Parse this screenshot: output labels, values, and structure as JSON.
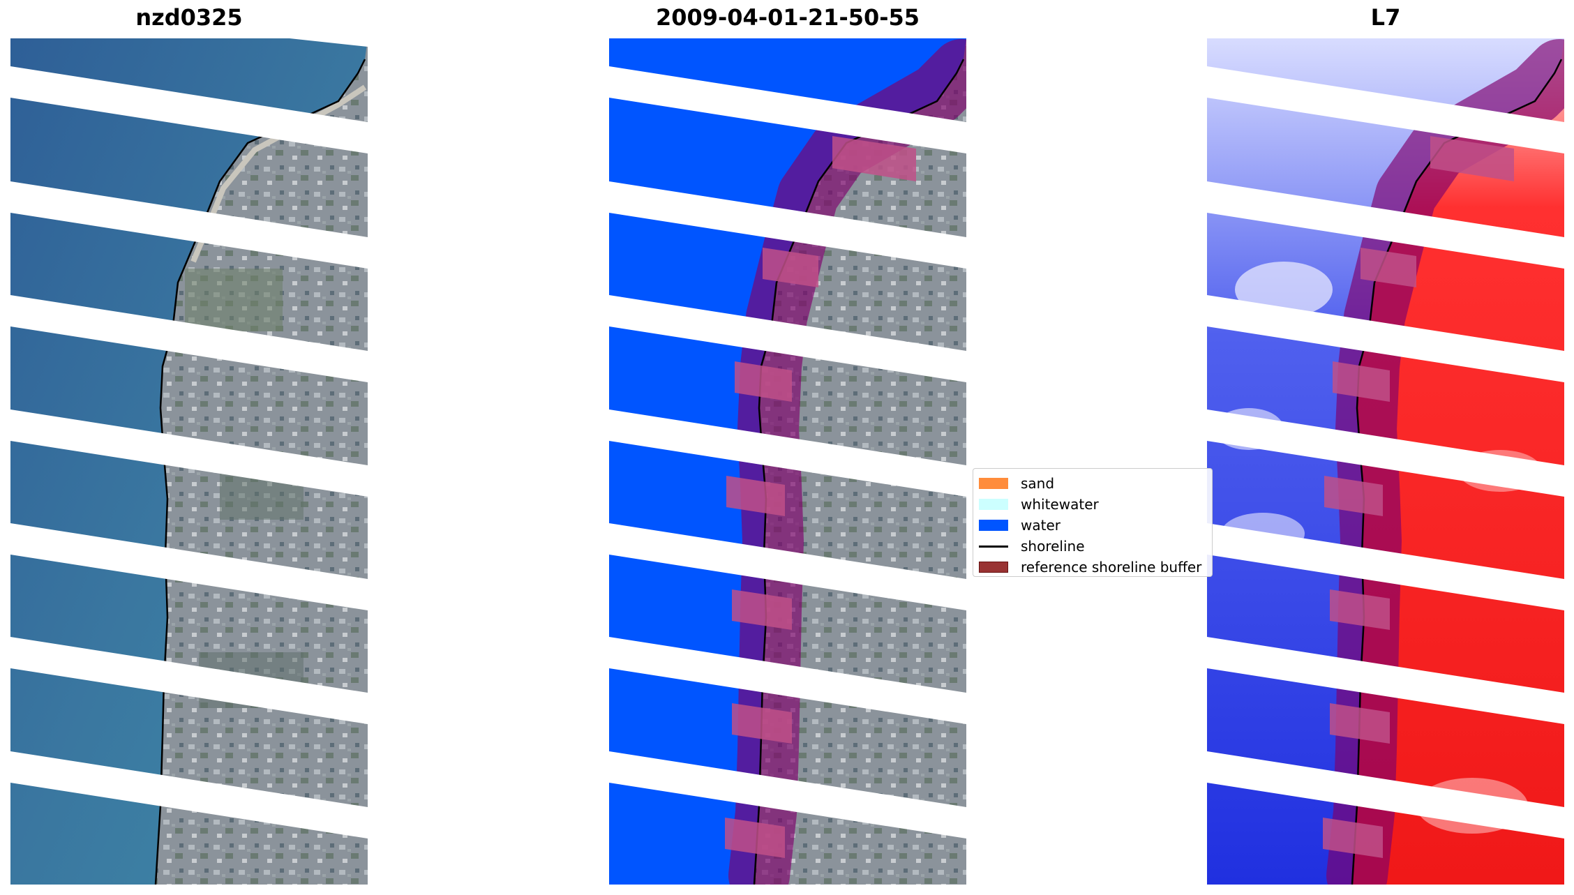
{
  "panels": {
    "rgb": {
      "title": "nzd0325"
    },
    "classified": {
      "title": "2009-04-01-21-50-55"
    },
    "index": {
      "title": "L7"
    }
  },
  "legend": {
    "items": [
      {
        "label": "sand",
        "color": "#ff8c3b"
      },
      {
        "label": "whitewater",
        "color": "#ccffff"
      },
      {
        "label": "water",
        "color": "#0055ff"
      },
      {
        "label": "shoreline",
        "color": "#000000"
      },
      {
        "label": "reference shoreline buffer",
        "color": "#993333"
      }
    ]
  },
  "colors": {
    "ocean": "#2e6496",
    "land": "#8c949a",
    "water_class": "#0055ff",
    "buffer": "#80006b",
    "index_water": "#2020ee",
    "index_land": "#ee1010"
  }
}
